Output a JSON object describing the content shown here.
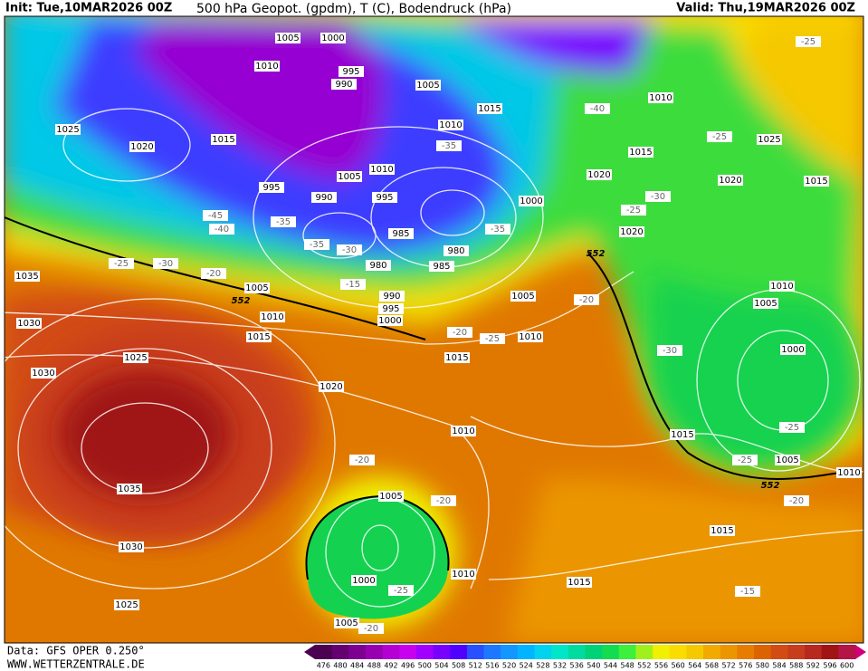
{
  "header": {
    "init": "Init: Tue,10MAR2026 00Z",
    "title": "500 hPa Geopot. (gpdm), T (C), Bodendruck (hPa)",
    "valid": "Valid: Thu,19MAR2026 00Z"
  },
  "footer": {
    "data": "Data: GFS OPER 0.250°",
    "site": "WWW.WETTERZENTRALE.DE"
  },
  "colorbar": {
    "labels": [
      "476",
      "480",
      "484",
      "488",
      "492",
      "496",
      "500",
      "504",
      "508",
      "512",
      "516",
      "520",
      "524",
      "528",
      "532",
      "536",
      "540",
      "544",
      "548",
      "552",
      "556",
      "560",
      "564",
      "568",
      "572",
      "576",
      "580",
      "584",
      "588",
      "592",
      "596",
      "600"
    ],
    "colors": [
      "#4b0050",
      "#640070",
      "#7d0090",
      "#9600b0",
      "#b400d2",
      "#c800f0",
      "#a000ff",
      "#7800ff",
      "#5000ff",
      "#2850ff",
      "#1e78ff",
      "#1496ff",
      "#00b4ff",
      "#00d2f0",
      "#00e6c8",
      "#00dca0",
      "#00d278",
      "#14dc50",
      "#3cf03c",
      "#a0f01e",
      "#f0f000",
      "#fadc00",
      "#f5c800",
      "#f0aa00",
      "#eb9600",
      "#e67d00",
      "#dc6400",
      "#d24b14",
      "#c83c1e",
      "#b9281e",
      "#a01414",
      "#b41446"
    ]
  },
  "isobar_labels": [
    "1005",
    "1000",
    "1010",
    "995",
    "990",
    "1005",
    "1025",
    "1020",
    "1015",
    "1015",
    "1010",
    "1010",
    "1015",
    "1020",
    "1005",
    "1010",
    "995",
    "990",
    "995",
    "1000",
    "985",
    "980",
    "985",
    "980",
    "1020",
    "1035",
    "1005",
    "990",
    "995",
    "1000",
    "1010",
    "1005",
    "1030",
    "1015",
    "1010",
    "1025",
    "1015",
    "1030",
    "1020",
    "1010",
    "1035",
    "1005",
    "1030",
    "1000",
    "1010",
    "1025",
    "1005",
    "1015",
    "1015",
    "1015",
    "1005",
    "1010",
    "1000",
    "1005",
    "1010",
    "1020",
    "1015",
    "1025"
  ],
  "temperature_labels": [
    "-25",
    "-40",
    "-25",
    "-35",
    "-30",
    "-25",
    "-35",
    "-45",
    "-40",
    "-35",
    "-35",
    "-30",
    "-25",
    "-30",
    "-20",
    "-15",
    "-20",
    "-20",
    "-25",
    "-30",
    "-25",
    "-25",
    "-20",
    "-20",
    "-20",
    "-25",
    "-15",
    "-20"
  ],
  "height_labels": [
    "552",
    "552",
    "552"
  ]
}
